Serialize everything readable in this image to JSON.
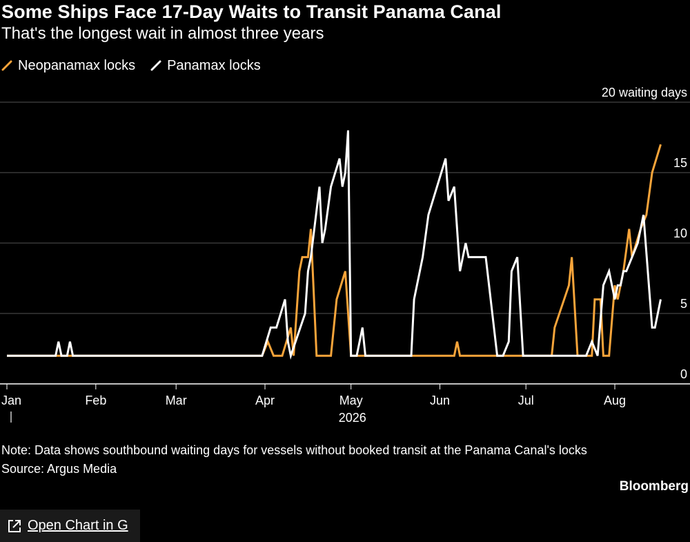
{
  "title": "Some Ships Face 17-Day Waits to Transit Panama Canal",
  "subtitle": "That's the longest wait in almost three years",
  "note": "Note: Data shows southbound waiting days for vessels without booked transit at the Panama Canal's locks",
  "source": "Source: Argus Media",
  "brand": "Bloomberg",
  "open_chart": {
    "label": "Open Chart in G",
    "icon": "external-link-icon"
  },
  "colors": {
    "neopanamax": "#f7a43a",
    "panamax": "#ffffff",
    "background": "#000000",
    "grid": "#555555"
  },
  "chart_data": {
    "type": "line",
    "year_label": "2026",
    "y_unit_label": "20 waiting days",
    "ylim": [
      0,
      20
    ],
    "y_ticks": [
      "0",
      "5",
      "10",
      "15"
    ],
    "x_range": [
      "2026-01-01",
      "2026-08-20"
    ],
    "x_ticks": [
      {
        "label": "Jan",
        "date": "2026-01-01"
      },
      {
        "label": "Feb",
        "date": "2026-02-01"
      },
      {
        "label": "Mar",
        "date": "2026-03-01"
      },
      {
        "label": "Apr",
        "date": "2026-04-01"
      },
      {
        "label": "May",
        "date": "2026-05-01"
      },
      {
        "label": "Jun",
        "date": "2026-06-01"
      },
      {
        "label": "Jul",
        "date": "2026-07-01"
      },
      {
        "label": "Aug",
        "date": "2026-08-01"
      }
    ],
    "series": [
      {
        "name": "Neopanamax locks",
        "color": "#f7a43a",
        "points": [
          [
            "2026-01-01",
            2
          ],
          [
            "2026-03-31",
            2
          ],
          [
            "2026-04-02",
            3
          ],
          [
            "2026-04-04",
            2
          ],
          [
            "2026-04-07",
            2
          ],
          [
            "2026-04-10",
            4
          ],
          [
            "2026-04-11",
            2
          ],
          [
            "2026-04-13",
            8
          ],
          [
            "2026-04-14",
            9
          ],
          [
            "2026-04-16",
            9
          ],
          [
            "2026-04-17",
            11
          ],
          [
            "2026-04-19",
            2
          ],
          [
            "2026-04-24",
            2
          ],
          [
            "2026-04-26",
            6
          ],
          [
            "2026-04-29",
            8
          ],
          [
            "2026-05-01",
            2
          ],
          [
            "2026-05-16",
            2
          ],
          [
            "2026-05-31",
            2
          ],
          [
            "2026-06-06",
            2
          ],
          [
            "2026-06-07",
            3
          ],
          [
            "2026-06-08",
            2
          ],
          [
            "2026-06-30",
            2
          ],
          [
            "2026-07-10",
            2
          ],
          [
            "2026-07-11",
            4
          ],
          [
            "2026-07-16",
            7
          ],
          [
            "2026-07-17",
            9
          ],
          [
            "2026-07-19",
            2
          ],
          [
            "2026-07-21",
            2
          ],
          [
            "2026-07-24",
            2
          ],
          [
            "2026-07-25",
            6
          ],
          [
            "2026-07-27",
            6
          ],
          [
            "2026-07-28",
            2
          ],
          [
            "2026-07-30",
            2
          ],
          [
            "2026-08-01",
            7
          ],
          [
            "2026-08-02",
            6
          ],
          [
            "2026-08-04",
            8
          ],
          [
            "2026-08-06",
            11
          ],
          [
            "2026-08-07",
            9
          ],
          [
            "2026-08-10",
            11
          ],
          [
            "2026-08-12",
            12
          ],
          [
            "2026-08-14",
            15
          ],
          [
            "2026-08-17",
            17
          ]
        ]
      },
      {
        "name": "Panamax locks",
        "color": "#ffffff",
        "points": [
          [
            "2026-01-01",
            2
          ],
          [
            "2026-01-18",
            2
          ],
          [
            "2026-01-19",
            3
          ],
          [
            "2026-01-20",
            2
          ],
          [
            "2026-01-22",
            2
          ],
          [
            "2026-01-23",
            3
          ],
          [
            "2026-01-24",
            2
          ],
          [
            "2026-03-31",
            2
          ],
          [
            "2026-04-03",
            4
          ],
          [
            "2026-04-05",
            4
          ],
          [
            "2026-04-08",
            6
          ],
          [
            "2026-04-09",
            3
          ],
          [
            "2026-04-10",
            2
          ],
          [
            "2026-04-15",
            5
          ],
          [
            "2026-04-16",
            8
          ],
          [
            "2026-04-17",
            9
          ],
          [
            "2026-04-20",
            14
          ],
          [
            "2026-04-21",
            10
          ],
          [
            "2026-04-22",
            11
          ],
          [
            "2026-04-24",
            14
          ],
          [
            "2026-04-27",
            16
          ],
          [
            "2026-04-28",
            14
          ],
          [
            "2026-04-29",
            15
          ],
          [
            "2026-04-30",
            18
          ],
          [
            "2026-05-01",
            2
          ],
          [
            "2026-05-03",
            2
          ],
          [
            "2026-05-05",
            4
          ],
          [
            "2026-05-06",
            2
          ],
          [
            "2026-05-22",
            2
          ],
          [
            "2026-05-23",
            6
          ],
          [
            "2026-05-26",
            9
          ],
          [
            "2026-05-28",
            12
          ],
          [
            "2026-06-03",
            16
          ],
          [
            "2026-06-04",
            13
          ],
          [
            "2026-06-06",
            14
          ],
          [
            "2026-06-08",
            8
          ],
          [
            "2026-06-10",
            10
          ],
          [
            "2026-06-11",
            9
          ],
          [
            "2026-06-13",
            9
          ],
          [
            "2026-06-15",
            9
          ],
          [
            "2026-06-17",
            9
          ],
          [
            "2026-06-21",
            2
          ],
          [
            "2026-06-23",
            2
          ],
          [
            "2026-06-25",
            3
          ],
          [
            "2026-06-26",
            8
          ],
          [
            "2026-06-28",
            9
          ],
          [
            "2026-06-30",
            2
          ],
          [
            "2026-07-10",
            2
          ],
          [
            "2026-07-12",
            2
          ],
          [
            "2026-07-17",
            2
          ],
          [
            "2026-07-20",
            2
          ],
          [
            "2026-07-22",
            2
          ],
          [
            "2026-07-24",
            3
          ],
          [
            "2026-07-26",
            2
          ],
          [
            "2026-07-28",
            7
          ],
          [
            "2026-07-30",
            8
          ],
          [
            "2026-08-01",
            6
          ],
          [
            "2026-08-02",
            7
          ],
          [
            "2026-08-03",
            7
          ],
          [
            "2026-08-04",
            8
          ],
          [
            "2026-08-05",
            8
          ],
          [
            "2026-08-07",
            9
          ],
          [
            "2026-08-09",
            10
          ],
          [
            "2026-08-11",
            12
          ],
          [
            "2026-08-14",
            4
          ],
          [
            "2026-08-15",
            4
          ],
          [
            "2026-08-17",
            6
          ]
        ]
      }
    ]
  }
}
